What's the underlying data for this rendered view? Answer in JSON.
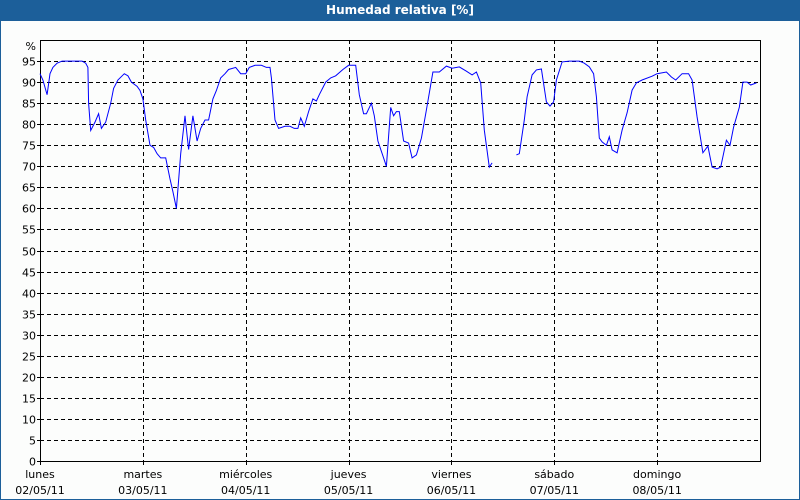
{
  "window": {
    "title": "Humedad relativa [%]"
  },
  "chart_data": {
    "type": "line",
    "title": "Humedad relativa [%]",
    "ylabel": "%",
    "ylim": [
      0,
      100
    ],
    "yticks": [
      0,
      5,
      10,
      15,
      20,
      25,
      30,
      35,
      40,
      45,
      50,
      55,
      60,
      65,
      70,
      75,
      80,
      85,
      90,
      95
    ],
    "xlim": [
      "2011-05-02 00:00",
      "2011-05-09 00:00"
    ],
    "grid": true,
    "line_color": "#0000ff",
    "xticks": [
      {
        "day": "lunes",
        "date": "02/05/11"
      },
      {
        "day": "martes",
        "date": "03/05/11"
      },
      {
        "day": "miércoles",
        "date": "04/05/11"
      },
      {
        "day": "jueves",
        "date": "05/05/11"
      },
      {
        "day": "viernes",
        "date": "06/05/11"
      },
      {
        "day": "sábado",
        "date": "07/05/11"
      },
      {
        "day": "domingo",
        "date": "08/05/11"
      }
    ],
    "series": [
      {
        "points": [
          [
            "2011-05-02 00:00",
            92
          ],
          [
            "2011-05-02 00:40",
            90.5
          ],
          [
            "2011-05-02 01:40",
            87
          ],
          [
            "2011-05-02 02:20",
            92
          ],
          [
            "2011-05-02 03:00",
            93.5
          ],
          [
            "2011-05-02 04:00",
            94.5
          ],
          [
            "2011-05-02 05:10",
            95
          ],
          [
            "2011-05-02 07:00",
            95
          ],
          [
            "2011-05-02 09:50",
            95
          ],
          [
            "2011-05-02 10:40",
            94.5
          ],
          [
            "2011-05-02 11:10",
            93.5
          ],
          [
            "2011-05-02 11:20",
            85
          ],
          [
            "2011-05-02 11:50",
            78.5
          ],
          [
            "2011-05-02 12:50",
            80.5
          ],
          [
            "2011-05-02 13:40",
            82.5
          ],
          [
            "2011-05-02 14:20",
            79
          ],
          [
            "2011-05-02 15:20",
            80.5
          ],
          [
            "2011-05-02 16:30",
            85
          ],
          [
            "2011-05-02 17:10",
            88.5
          ],
          [
            "2011-05-02 18:10",
            90.5
          ],
          [
            "2011-05-02 19:40",
            92
          ],
          [
            "2011-05-02 20:30",
            91.5
          ],
          [
            "2011-05-02 21:20",
            90
          ],
          [
            "2011-05-02 22:40",
            89
          ],
          [
            "2011-05-02 23:20",
            88
          ],
          [
            "2011-05-03 00:00",
            86
          ],
          [
            "2011-05-03 00:40",
            81
          ],
          [
            "2011-05-03 01:40",
            75
          ],
          [
            "2011-05-03 02:30",
            74.5
          ],
          [
            "2011-05-03 03:20",
            73
          ],
          [
            "2011-05-03 04:10",
            72
          ],
          [
            "2011-05-03 05:20",
            72
          ],
          [
            "2011-05-03 06:20",
            67
          ],
          [
            "2011-05-03 07:00",
            64
          ],
          [
            "2011-05-03 07:50",
            60
          ],
          [
            "2011-05-03 08:50",
            73
          ],
          [
            "2011-05-03 09:50",
            82
          ],
          [
            "2011-05-03 10:40",
            74
          ],
          [
            "2011-05-03 11:40",
            82
          ],
          [
            "2011-05-03 12:40",
            76
          ],
          [
            "2011-05-03 13:30",
            79
          ],
          [
            "2011-05-03 14:30",
            81
          ],
          [
            "2011-05-03 15:20",
            81
          ],
          [
            "2011-05-03 16:20",
            86
          ],
          [
            "2011-05-03 17:10",
            88
          ],
          [
            "2011-05-03 18:10",
            91
          ],
          [
            "2011-05-03 19:10",
            92
          ],
          [
            "2011-05-03 20:00",
            93
          ],
          [
            "2011-05-03 21:40",
            93.5
          ],
          [
            "2011-05-03 22:50",
            92
          ],
          [
            "2011-05-04 00:00",
            92
          ],
          [
            "2011-05-04 00:50",
            93.5
          ],
          [
            "2011-05-04 02:10",
            94
          ],
          [
            "2011-05-04 03:40",
            94
          ],
          [
            "2011-05-04 04:50",
            93.5
          ],
          [
            "2011-05-04 05:40",
            93.5
          ],
          [
            "2011-05-04 06:00",
            91
          ],
          [
            "2011-05-04 06:50",
            81
          ],
          [
            "2011-05-04 07:40",
            79
          ],
          [
            "2011-05-04 09:10",
            79.5
          ],
          [
            "2011-05-04 10:20",
            79.5
          ],
          [
            "2011-05-04 11:20",
            79
          ],
          [
            "2011-05-04 12:10",
            79
          ],
          [
            "2011-05-04 12:50",
            81.5
          ],
          [
            "2011-05-04 13:40",
            79.5
          ],
          [
            "2011-05-04 14:40",
            83
          ],
          [
            "2011-05-04 15:40",
            86
          ],
          [
            "2011-05-04 16:30",
            85.5
          ],
          [
            "2011-05-04 17:10",
            87
          ],
          [
            "2011-05-04 18:40",
            90
          ],
          [
            "2011-05-04 19:50",
            91
          ],
          [
            "2011-05-04 21:00",
            91.5
          ],
          [
            "2011-05-04 22:40",
            93
          ],
          [
            "2011-05-05 00:00",
            94
          ],
          [
            "2011-05-05 01:40",
            94
          ],
          [
            "2011-05-05 02:30",
            87
          ],
          [
            "2011-05-05 03:30",
            82.5
          ],
          [
            "2011-05-05 04:10",
            82.5
          ],
          [
            "2011-05-05 05:20",
            85
          ],
          [
            "2011-05-05 06:00",
            82
          ],
          [
            "2011-05-05 06:50",
            76
          ],
          [
            "2011-05-05 08:50",
            70
          ],
          [
            "2011-05-05 09:50",
            84
          ],
          [
            "2011-05-05 10:30",
            82
          ],
          [
            "2011-05-05 11:10",
            83
          ],
          [
            "2011-05-05 11:50",
            83
          ],
          [
            "2011-05-05 12:50",
            76
          ],
          [
            "2011-05-05 14:00",
            75.5
          ],
          [
            "2011-05-05 14:50",
            72
          ],
          [
            "2011-05-05 15:50",
            72.7
          ],
          [
            "2011-05-05 17:00",
            76.7
          ],
          [
            "2011-05-05 18:10",
            83.4
          ],
          [
            "2011-05-05 19:40",
            92.4
          ],
          [
            "2011-05-05 21:10",
            92.4
          ],
          [
            "2011-05-05 22:50",
            93.8
          ],
          [
            "2011-05-06 00:10",
            93.3
          ],
          [
            "2011-05-06 01:50",
            93.6
          ],
          [
            "2011-05-06 03:30",
            92.6
          ],
          [
            "2011-05-06 04:50",
            91.7
          ],
          [
            "2011-05-06 05:50",
            92.4
          ],
          [
            "2011-05-06 06:50",
            89.8
          ],
          [
            "2011-05-06 07:40",
            78.6
          ],
          [
            "2011-05-06 08:50",
            69.8
          ],
          [
            "2011-05-06 09:30",
            70.8
          ],
          [
            "2011-05-06 12:00",
            null
          ],
          [
            "2011-05-06 15:10",
            72.7
          ],
          [
            "2011-05-06 15:50",
            73
          ],
          [
            "2011-05-06 17:00",
            81
          ],
          [
            "2011-05-06 17:40",
            86.5
          ],
          [
            "2011-05-06 18:50",
            91.7
          ],
          [
            "2011-05-06 19:50",
            92.9
          ],
          [
            "2011-05-06 21:00",
            93.1
          ],
          [
            "2011-05-06 22:10",
            85.3
          ],
          [
            "2011-05-06 23:00",
            84.3
          ],
          [
            "2011-05-06 23:50",
            85.3
          ],
          [
            "2011-05-07 00:30",
            90.5
          ],
          [
            "2011-05-07 01:50",
            94.8
          ],
          [
            "2011-05-07 03:30",
            95
          ],
          [
            "2011-05-07 05:50",
            95
          ],
          [
            "2011-05-07 07:00",
            94.5
          ],
          [
            "2011-05-07 08:10",
            93.6
          ],
          [
            "2011-05-07 09:10",
            92
          ],
          [
            "2011-05-07 09:50",
            86.5
          ],
          [
            "2011-05-07 10:30",
            76.7
          ],
          [
            "2011-05-07 11:10",
            75.8
          ],
          [
            "2011-05-07 12:10",
            75
          ],
          [
            "2011-05-07 12:50",
            77
          ],
          [
            "2011-05-07 13:30",
            73.9
          ],
          [
            "2011-05-07 14:40",
            73.2
          ],
          [
            "2011-05-07 15:50",
            78.6
          ],
          [
            "2011-05-07 17:00",
            82.7
          ],
          [
            "2011-05-07 18:10",
            88.1
          ],
          [
            "2011-05-07 19:10",
            89.8
          ],
          [
            "2011-05-07 20:30",
            90.5
          ],
          [
            "2011-05-07 22:50",
            91.4
          ],
          [
            "2011-05-08 00:00",
            92
          ],
          [
            "2011-05-08 02:10",
            92.4
          ],
          [
            "2011-05-08 03:20",
            91.2
          ],
          [
            "2011-05-08 04:20",
            90.5
          ],
          [
            "2011-05-08 05:50",
            92
          ],
          [
            "2011-05-08 07:20",
            92
          ],
          [
            "2011-05-08 08:10",
            90.5
          ],
          [
            "2011-05-08 09:20",
            81.7
          ],
          [
            "2011-05-08 10:40",
            73.2
          ],
          [
            "2011-05-08 11:50",
            74.8
          ],
          [
            "2011-05-08 12:50",
            69.8
          ],
          [
            "2011-05-08 14:00",
            69.4
          ],
          [
            "2011-05-08 14:50",
            69.8
          ],
          [
            "2011-05-08 16:10",
            76.2
          ],
          [
            "2011-05-08 17:00",
            75
          ],
          [
            "2011-05-08 17:50",
            79.3
          ],
          [
            "2011-05-08 19:10",
            84
          ],
          [
            "2011-05-08 20:00",
            90
          ],
          [
            "2011-05-08 21:00",
            90
          ],
          [
            "2011-05-08 21:50",
            89.3
          ],
          [
            "2011-05-08 23:10",
            89.8
          ]
        ]
      }
    ]
  }
}
